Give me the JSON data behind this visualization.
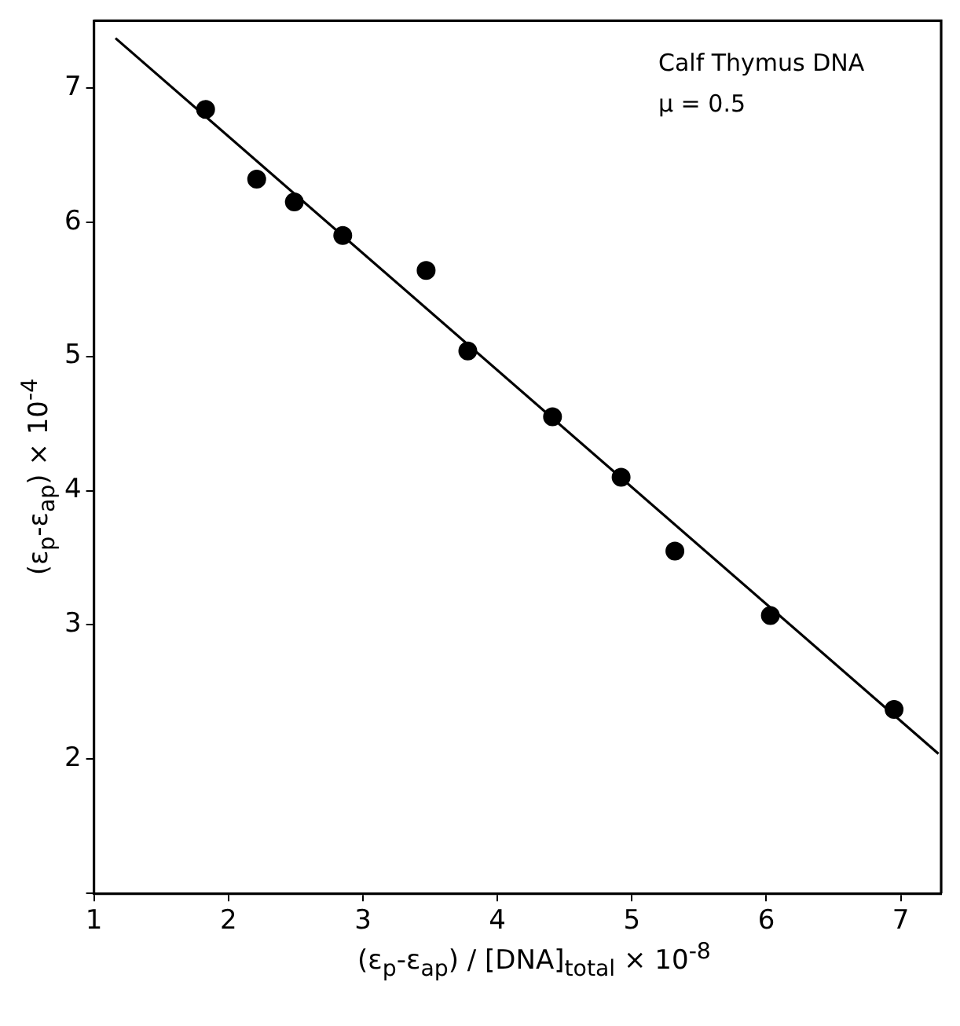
{
  "chart_data": {
    "type": "scatter",
    "xlabel": "(ε$_{p}$-ε$_{ap}$) / [DNA]$_{total}$ × 10$^{-8}$",
    "ylabel": "(ε$_{p}$-ε$_{ap}$) × 10$^{-4}$",
    "annotations": [
      "Calf Thymus DNA",
      "μ = 0.5"
    ],
    "xlim": [
      1,
      7.3
    ],
    "xticks": [
      1,
      2,
      3,
      4,
      5,
      6,
      7
    ],
    "ylim": [
      1,
      7.5
    ],
    "yticks": [
      {
        "value": 1,
        "label": null
      },
      2,
      3,
      4,
      5,
      6,
      7
    ],
    "grid": false,
    "legend": false,
    "series": [
      {
        "color": "#000000",
        "marker": "circle",
        "x": [
          1.83,
          2.21,
          2.49,
          2.85,
          3.47,
          3.78,
          4.41,
          4.92,
          5.32,
          6.03,
          6.95
        ],
        "values": [
          6.84,
          6.32,
          6.15,
          5.9,
          5.64,
          5.04,
          4.55,
          4.1,
          3.55,
          3.07,
          2.37
        ]
      },
      {
        "type": "line",
        "color": "#000000",
        "marker": "none",
        "line_style": "solid",
        "x": [
          1.16,
          7.28
        ],
        "values": [
          7.37,
          2.04
        ]
      }
    ]
  }
}
